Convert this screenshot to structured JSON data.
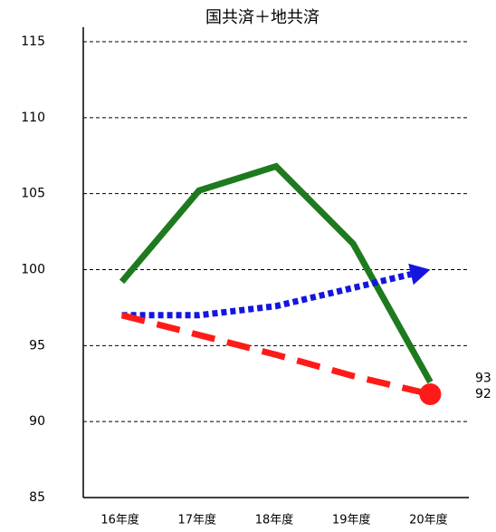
{
  "chart_data": {
    "type": "line",
    "title": "国共済＋地共済",
    "categories": [
      "16年度",
      "17年度",
      "18年度",
      "19年度",
      "20年度"
    ],
    "series": [
      {
        "color": "#1e7a1e",
        "style": "solid",
        "values": [
          99.2,
          105.2,
          106.8,
          101.7,
          92.6
        ],
        "value_labels": [
          null,
          null,
          null,
          null,
          "93"
        ]
      },
      {
        "color": "#1515e0",
        "style": "dotted",
        "marker_end": "arrow",
        "values": [
          97.0,
          97.0,
          97.6,
          98.8,
          100.0
        ]
      },
      {
        "color": "#ff1a1a",
        "style": "dashed",
        "marker_end": "circle",
        "values": [
          97.0,
          95.7,
          94.4,
          93.0,
          91.8
        ],
        "value_labels": [
          null,
          null,
          null,
          null,
          "92"
        ]
      }
    ],
    "ylim": [
      85,
      115
    ],
    "yticks": [
      85,
      90,
      95,
      100,
      105,
      110,
      115
    ],
    "grid": true
  }
}
